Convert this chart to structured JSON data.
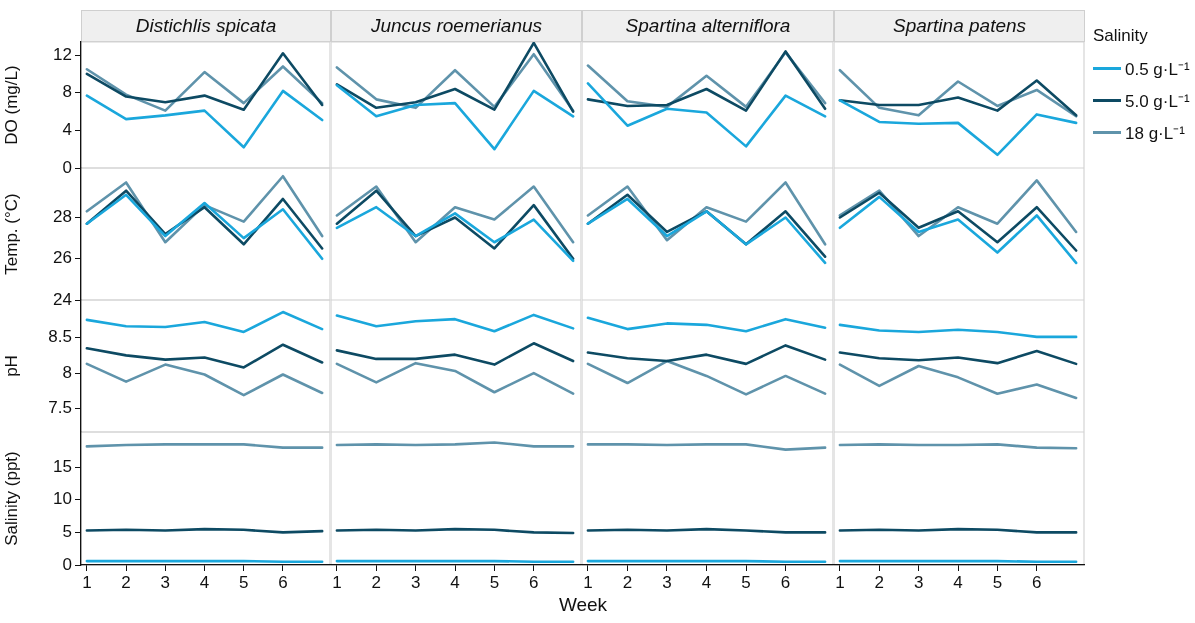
{
  "chart_data": [
    {
      "type": "line",
      "title": "Distichlis spicata",
      "ylabel": "DO (mg/L)",
      "x": [
        1,
        2,
        3,
        4,
        5,
        6,
        7
      ],
      "xlim": [
        0.85,
        7.2
      ],
      "xticks": [
        1,
        2,
        3,
        4,
        5,
        6
      ],
      "ylim": [
        0,
        13.4
      ],
      "yticks": [
        0,
        4,
        8,
        12
      ],
      "tick_labels": "y",
      "series": [
        {
          "color": "#1aa7dc",
          "values": [
            7.7,
            5.2,
            5.6,
            6.1,
            2.2,
            8.2,
            5.1
          ]
        },
        {
          "color": "#0d4a63",
          "values": [
            10.0,
            7.6,
            7.0,
            7.7,
            6.2,
            12.2,
            6.7
          ]
        },
        {
          "color": "#5f93ab",
          "values": [
            10.5,
            7.8,
            6.1,
            10.2,
            6.9,
            10.8,
            6.9
          ]
        }
      ]
    },
    {
      "type": "line",
      "title": "Juncus roemerianus",
      "x": [
        1,
        2,
        3,
        4,
        5,
        6,
        7
      ],
      "xlim": [
        0.85,
        7.2
      ],
      "xticks": [
        1,
        2,
        3,
        4,
        5,
        6
      ],
      "ylim": [
        0,
        13.4
      ],
      "yticks": [
        0,
        4,
        8,
        12
      ],
      "tick_labels": false,
      "series": [
        {
          "color": "#1aa7dc",
          "values": [
            8.8,
            5.5,
            6.7,
            6.9,
            2.0,
            8.2,
            5.5
          ]
        },
        {
          "color": "#0d4a63",
          "values": [
            8.9,
            6.4,
            7.0,
            8.4,
            6.2,
            13.3,
            6.0
          ]
        },
        {
          "color": "#5f93ab",
          "values": [
            10.7,
            7.3,
            6.4,
            10.4,
            6.5,
            12.1,
            6.1
          ]
        }
      ]
    },
    {
      "type": "line",
      "title": "Spartina alterniflora",
      "x": [
        1,
        2,
        3,
        4,
        5,
        6,
        7
      ],
      "xlim": [
        0.85,
        7.2
      ],
      "xticks": [
        1,
        2,
        3,
        4,
        5,
        6
      ],
      "ylim": [
        0,
        13.4
      ],
      "yticks": [
        0,
        4,
        8,
        12
      ],
      "tick_labels": false,
      "series": [
        {
          "color": "#1aa7dc",
          "values": [
            9.0,
            4.5,
            6.3,
            5.9,
            2.3,
            7.7,
            5.5
          ]
        },
        {
          "color": "#0d4a63",
          "values": [
            7.3,
            6.6,
            6.7,
            8.4,
            6.1,
            12.4,
            6.3
          ]
        },
        {
          "color": "#5f93ab",
          "values": [
            10.9,
            7.1,
            6.5,
            9.8,
            6.5,
            12.3,
            6.9
          ]
        }
      ]
    },
    {
      "type": "line",
      "title": "Spartina patens",
      "legend_title": "Salinity",
      "legend": "right",
      "x": [
        1,
        2,
        3,
        4,
        5,
        6,
        7
      ],
      "xlim": [
        0.85,
        7.2
      ],
      "xticks": [
        1,
        2,
        3,
        4,
        5,
        6
      ],
      "ylim": [
        0,
        13.4
      ],
      "yticks": [
        0,
        4,
        8,
        12
      ],
      "tick_labels": false,
      "series": [
        {
          "name": "0.5 g·L⁻¹",
          "color": "#1aa7dc",
          "values": [
            7.2,
            4.9,
            4.7,
            4.8,
            1.4,
            5.7,
            4.8
          ]
        },
        {
          "name": "5.0 g·L⁻¹",
          "color": "#0d4a63",
          "values": [
            7.2,
            6.7,
            6.7,
            7.5,
            6.1,
            9.3,
            5.6
          ]
        },
        {
          "name": "18 g·L⁻¹",
          "color": "#5f93ab",
          "values": [
            10.4,
            6.4,
            5.6,
            9.2,
            6.6,
            8.3,
            5.5
          ]
        }
      ]
    },
    {
      "type": "line",
      "ylabel": "Temp. (°C)",
      "x": [
        1,
        2,
        3,
        4,
        5,
        6,
        7
      ],
      "xlim": [
        0.85,
        7.2
      ],
      "xticks": [
        1,
        2,
        3,
        4,
        5,
        6
      ],
      "ylim": [
        24,
        30.4
      ],
      "yticks": [
        24,
        26,
        28
      ],
      "tick_labels": "y",
      "series": [
        {
          "color": "#1aa7dc",
          "values": [
            27.7,
            29.1,
            27.1,
            28.7,
            27.0,
            28.4,
            26.0
          ]
        },
        {
          "color": "#0d4a63",
          "values": [
            27.7,
            29.3,
            27.2,
            28.5,
            26.7,
            28.9,
            26.5
          ]
        },
        {
          "color": "#5f93ab",
          "values": [
            28.3,
            29.7,
            26.8,
            28.6,
            27.8,
            30.0,
            27.1
          ]
        }
      ]
    },
    {
      "type": "line",
      "x": [
        1,
        2,
        3,
        4,
        5,
        6,
        7
      ],
      "xlim": [
        0.85,
        7.2
      ],
      "xticks": [
        1,
        2,
        3,
        4,
        5,
        6
      ],
      "ylim": [
        24,
        30.4
      ],
      "yticks": [
        24,
        26,
        28
      ],
      "tick_labels": false,
      "series": [
        {
          "color": "#1aa7dc",
          "values": [
            27.5,
            28.5,
            27.1,
            28.2,
            26.8,
            27.9,
            25.9
          ]
        },
        {
          "color": "#0d4a63",
          "values": [
            27.7,
            29.3,
            27.1,
            28.0,
            26.5,
            28.6,
            26.0
          ]
        },
        {
          "color": "#5f93ab",
          "values": [
            28.1,
            29.5,
            26.8,
            28.5,
            27.9,
            29.5,
            26.8
          ]
        }
      ]
    },
    {
      "type": "line",
      "x": [
        1,
        2,
        3,
        4,
        5,
        6,
        7
      ],
      "xlim": [
        0.85,
        7.2
      ],
      "xticks": [
        1,
        2,
        3,
        4,
        5,
        6
      ],
      "ylim": [
        24,
        30.4
      ],
      "yticks": [
        24,
        26,
        28
      ],
      "tick_labels": false,
      "series": [
        {
          "color": "#1aa7dc",
          "values": [
            27.7,
            28.9,
            27.1,
            28.3,
            26.7,
            28.0,
            25.8
          ]
        },
        {
          "color": "#0d4a63",
          "values": [
            27.7,
            29.1,
            27.3,
            28.3,
            26.7,
            28.3,
            26.1
          ]
        },
        {
          "color": "#5f93ab",
          "values": [
            28.1,
            29.5,
            26.9,
            28.5,
            27.8,
            29.7,
            26.7
          ]
        }
      ]
    },
    {
      "type": "line",
      "x": [
        1,
        2,
        3,
        4,
        5,
        6,
        7
      ],
      "xlim": [
        0.85,
        7.2
      ],
      "xticks": [
        1,
        2,
        3,
        4,
        5,
        6
      ],
      "ylim": [
        24,
        30.4
      ],
      "yticks": [
        24,
        26,
        28
      ],
      "tick_labels": false,
      "series": [
        {
          "color": "#1aa7dc",
          "values": [
            27.5,
            29.0,
            27.3,
            27.9,
            26.3,
            28.1,
            25.8
          ]
        },
        {
          "color": "#0d4a63",
          "values": [
            28.0,
            29.2,
            27.5,
            28.3,
            26.8,
            28.5,
            26.4
          ]
        },
        {
          "color": "#5f93ab",
          "values": [
            28.1,
            29.3,
            27.1,
            28.5,
            27.7,
            29.8,
            27.3
          ]
        }
      ]
    },
    {
      "type": "line",
      "ylabel": "pH",
      "x": [
        1,
        2,
        3,
        4,
        5,
        6,
        7
      ],
      "xlim": [
        0.85,
        7.2
      ],
      "xticks": [
        1,
        2,
        3,
        4,
        5,
        6
      ],
      "ylim": [
        7.17,
        9.03
      ],
      "yticks": [
        7.5,
        8.0,
        8.5
      ],
      "tick_labels": "y",
      "series": [
        {
          "color": "#1aa7dc",
          "values": [
            8.75,
            8.66,
            8.65,
            8.72,
            8.58,
            8.86,
            8.62
          ]
        },
        {
          "color": "#0d4a63",
          "values": [
            8.35,
            8.25,
            8.19,
            8.22,
            8.08,
            8.4,
            8.15
          ]
        },
        {
          "color": "#5f93ab",
          "values": [
            8.13,
            7.88,
            8.12,
            7.98,
            7.69,
            7.98,
            7.72
          ]
        }
      ]
    },
    {
      "type": "line",
      "x": [
        1,
        2,
        3,
        4,
        5,
        6,
        7
      ],
      "xlim": [
        0.85,
        7.2
      ],
      "xticks": [
        1,
        2,
        3,
        4,
        5,
        6
      ],
      "ylim": [
        7.17,
        9.03
      ],
      "yticks": [
        7.5,
        8.0,
        8.5
      ],
      "tick_labels": false,
      "series": [
        {
          "color": "#1aa7dc",
          "values": [
            8.81,
            8.66,
            8.73,
            8.76,
            8.59,
            8.82,
            8.63
          ]
        },
        {
          "color": "#0d4a63",
          "values": [
            8.32,
            8.2,
            8.2,
            8.26,
            8.12,
            8.42,
            8.17
          ]
        },
        {
          "color": "#5f93ab",
          "values": [
            8.13,
            7.87,
            8.14,
            8.03,
            7.73,
            8.0,
            7.71
          ]
        }
      ]
    },
    {
      "type": "line",
      "x": [
        1,
        2,
        3,
        4,
        5,
        6,
        7
      ],
      "xlim": [
        0.85,
        7.2
      ],
      "xticks": [
        1,
        2,
        3,
        4,
        5,
        6
      ],
      "ylim": [
        7.17,
        9.03
      ],
      "yticks": [
        7.5,
        8.0,
        8.5
      ],
      "tick_labels": false,
      "series": [
        {
          "color": "#1aa7dc",
          "values": [
            8.78,
            8.62,
            8.7,
            8.68,
            8.59,
            8.76,
            8.64
          ]
        },
        {
          "color": "#0d4a63",
          "values": [
            8.29,
            8.21,
            8.17,
            8.26,
            8.13,
            8.39,
            8.19
          ]
        },
        {
          "color": "#5f93ab",
          "values": [
            8.13,
            7.86,
            8.17,
            7.96,
            7.7,
            7.96,
            7.71
          ]
        }
      ]
    },
    {
      "type": "line",
      "x": [
        1,
        2,
        3,
        4,
        5,
        6,
        7
      ],
      "xlim": [
        0.85,
        7.2
      ],
      "xticks": [
        1,
        2,
        3,
        4,
        5,
        6
      ],
      "ylim": [
        7.17,
        9.03
      ],
      "yticks": [
        7.5,
        8.0,
        8.5
      ],
      "tick_labels": false,
      "series": [
        {
          "color": "#1aa7dc",
          "values": [
            8.68,
            8.6,
            8.58,
            8.61,
            8.58,
            8.51,
            8.51
          ]
        },
        {
          "color": "#0d4a63",
          "values": [
            8.29,
            8.21,
            8.18,
            8.22,
            8.14,
            8.31,
            8.13
          ]
        },
        {
          "color": "#5f93ab",
          "values": [
            8.12,
            7.82,
            8.1,
            7.94,
            7.71,
            7.84,
            7.65
          ]
        }
      ]
    },
    {
      "type": "line",
      "ylabel": "Salinity (ppt)",
      "x": [
        1,
        2,
        3,
        4,
        5,
        6,
        7
      ],
      "xlim": [
        0.85,
        7.2
      ],
      "xticks": [
        1,
        2,
        3,
        4,
        5,
        6
      ],
      "ylim": [
        0,
        20.4
      ],
      "yticks": [
        0,
        5,
        10,
        15
      ],
      "series": [
        {
          "color": "#1aa7dc",
          "values": [
            0.6,
            0.6,
            0.6,
            0.6,
            0.6,
            0.5,
            0.5
          ]
        },
        {
          "color": "#0d4a63",
          "values": [
            5.3,
            5.4,
            5.3,
            5.5,
            5.4,
            5.0,
            5.2
          ]
        },
        {
          "color": "#5f93ab",
          "values": [
            18.2,
            18.4,
            18.5,
            18.5,
            18.5,
            18.0,
            18.0
          ]
        }
      ]
    },
    {
      "type": "line",
      "xlabel": "Week",
      "x": [
        1,
        2,
        3,
        4,
        5,
        6,
        7
      ],
      "xlim": [
        0.85,
        7.2
      ],
      "xticks": [
        1,
        2,
        3,
        4,
        5,
        6
      ],
      "ylim": [
        0,
        20.4
      ],
      "yticks": [
        0,
        5,
        10,
        15
      ],
      "tick_labels": "x",
      "series": [
        {
          "color": "#1aa7dc",
          "values": [
            0.6,
            0.6,
            0.6,
            0.6,
            0.6,
            0.5,
            0.5
          ]
        },
        {
          "color": "#0d4a63",
          "values": [
            5.3,
            5.4,
            5.3,
            5.5,
            5.4,
            5.0,
            4.9
          ]
        },
        {
          "color": "#5f93ab",
          "values": [
            18.4,
            18.5,
            18.4,
            18.5,
            18.8,
            18.2,
            18.2
          ]
        }
      ]
    },
    {
      "type": "line",
      "x": [
        1,
        2,
        3,
        4,
        5,
        6,
        7
      ],
      "xlim": [
        0.85,
        7.2
      ],
      "xticks": [
        1,
        2,
        3,
        4,
        5,
        6
      ],
      "ylim": [
        0,
        20.4
      ],
      "yticks": [
        0,
        5,
        10,
        15
      ],
      "tick_labels": "x",
      "series": [
        {
          "color": "#1aa7dc",
          "values": [
            0.6,
            0.6,
            0.6,
            0.6,
            0.6,
            0.5,
            0.5
          ]
        },
        {
          "color": "#0d4a63",
          "values": [
            5.3,
            5.4,
            5.3,
            5.5,
            5.3,
            5.0,
            5.0
          ]
        },
        {
          "color": "#5f93ab",
          "values": [
            18.5,
            18.5,
            18.4,
            18.5,
            18.5,
            17.7,
            18.0
          ]
        }
      ]
    },
    {
      "type": "line",
      "x": [
        1,
        2,
        3,
        4,
        5,
        6,
        7
      ],
      "xlim": [
        0.85,
        7.2
      ],
      "xticks": [
        1,
        2,
        3,
        4,
        5,
        6
      ],
      "ylim": [
        0,
        20.4
      ],
      "yticks": [
        0,
        5,
        10,
        15
      ],
      "tick_labels": "x",
      "series": [
        {
          "color": "#1aa7dc",
          "values": [
            0.6,
            0.6,
            0.6,
            0.6,
            0.6,
            0.5,
            0.5
          ]
        },
        {
          "color": "#0d4a63",
          "values": [
            5.3,
            5.4,
            5.3,
            5.5,
            5.4,
            5.0,
            5.0
          ]
        },
        {
          "color": "#5f93ab",
          "values": [
            18.4,
            18.5,
            18.4,
            18.4,
            18.5,
            18.0,
            17.9
          ]
        }
      ]
    }
  ]
}
